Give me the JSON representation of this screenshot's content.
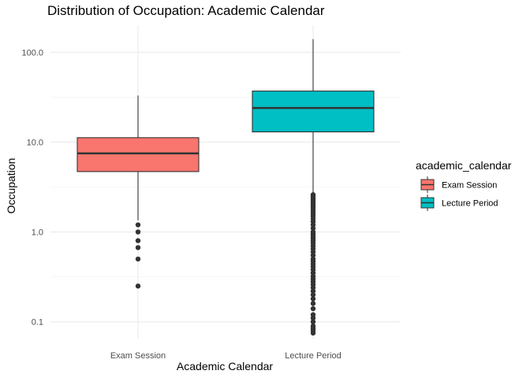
{
  "chart_data": {
    "type": "boxplot",
    "title": "Distribution of Occupation: Academic Calendar",
    "xlabel": "Academic Calendar",
    "ylabel": "Occupation",
    "yscale": "log10",
    "ylim": [
      0.065,
      200
    ],
    "yticks": [
      0.1,
      1.0,
      10.0,
      100.0
    ],
    "ytick_labels": [
      "0.1",
      "1.0",
      "10.0",
      "100.0"
    ],
    "grid": true,
    "legend": {
      "title": "academic_calendar",
      "position": "right",
      "entries": [
        {
          "label": "Exam Session",
          "color": "#F8766D"
        },
        {
          "label": "Lecture Period",
          "color": "#00BFC4"
        }
      ]
    },
    "categories": [
      "Exam Session",
      "Lecture Period"
    ],
    "series": [
      {
        "category": "Exam Session",
        "color": "#F8766D",
        "whisker_low": 1.35,
        "q1": 4.7,
        "median": 7.5,
        "q3": 11.2,
        "whisker_high": 33,
        "outliers": [
          1.2,
          1.0,
          0.8,
          0.67,
          0.5,
          0.25
        ]
      },
      {
        "category": "Lecture Period",
        "color": "#00BFC4",
        "whisker_low": 2.7,
        "q1": 13,
        "median": 24,
        "q3": 37,
        "whisker_high": 140,
        "outliers": [
          2.6,
          2.5,
          2.4,
          2.3,
          2.2,
          2.1,
          2.0,
          1.9,
          1.8,
          1.7,
          1.6,
          1.5,
          1.4,
          1.3,
          1.2,
          1.1,
          1.0,
          0.95,
          0.9,
          0.85,
          0.8,
          0.75,
          0.7,
          0.65,
          0.6,
          0.55,
          0.5,
          0.47,
          0.44,
          0.41,
          0.38,
          0.35,
          0.32,
          0.3,
          0.28,
          0.26,
          0.24,
          0.22,
          0.2,
          0.18,
          0.16,
          0.14,
          0.12,
          0.11,
          0.1,
          0.09,
          0.085,
          0.08,
          0.075
        ]
      }
    ]
  }
}
